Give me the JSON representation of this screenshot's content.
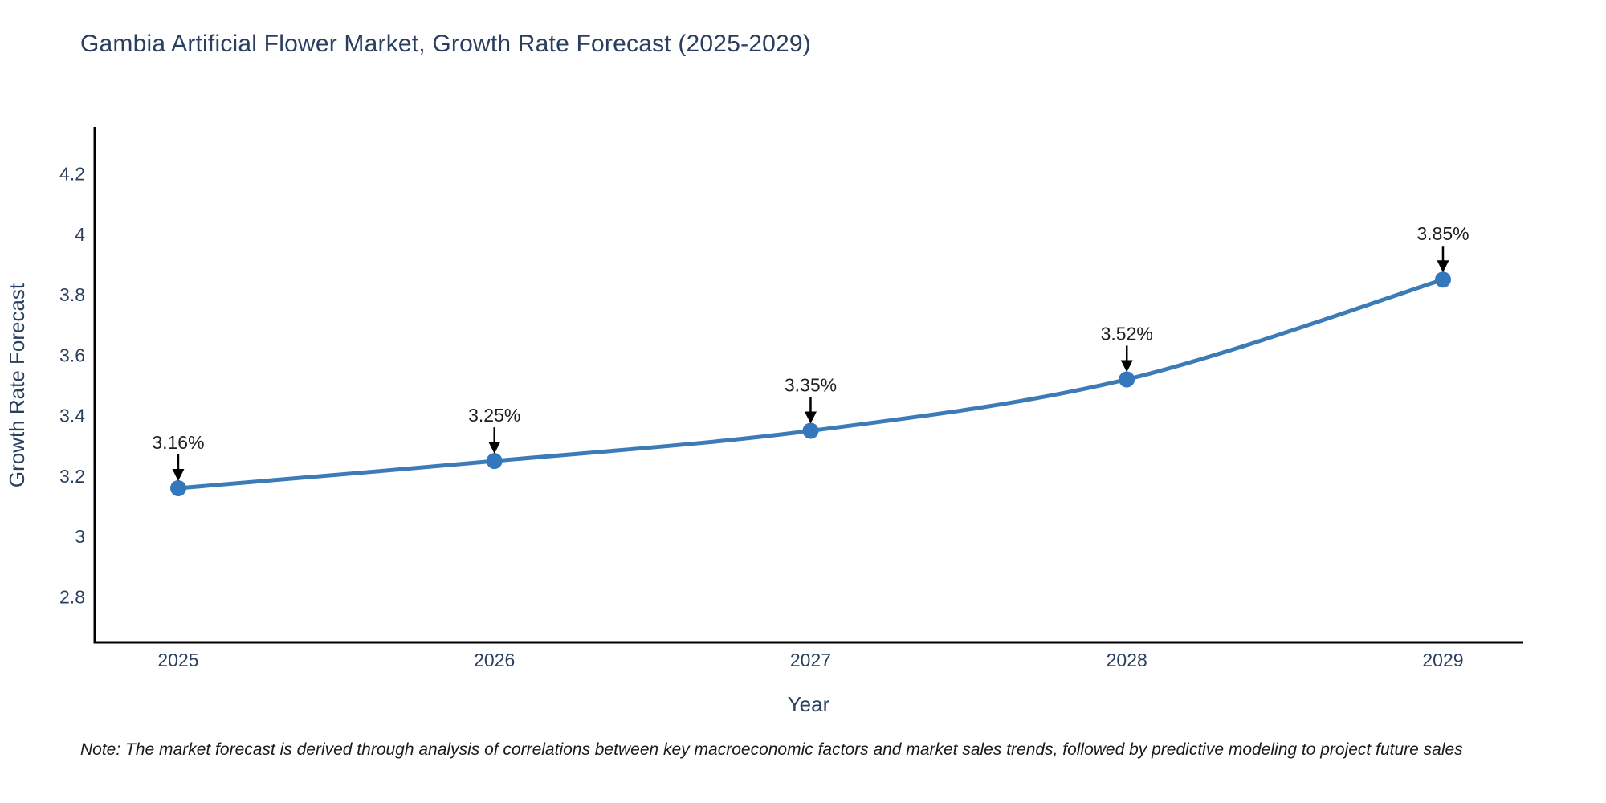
{
  "title": "Gambia Artificial Flower Market, Growth Rate Forecast (2025-2029)",
  "note": "Note: The market forecast is derived through analysis of correlations between key macroeconomic factors and market sales trends, followed by predictive modeling to project future sales",
  "colors": {
    "title": "#2a3f5f",
    "tick_labels": "#2a3f5f",
    "axis_line": "#000000",
    "line": "#3b7bb8",
    "marker": "#3577bd",
    "annotation_text": "#1f1f1f",
    "annotation_arrow": "#000000",
    "note_text": "#1a1a1a",
    "background": "#ffffff"
  },
  "chart_data": {
    "type": "line",
    "title": "Gambia Artificial Flower Market, Growth Rate Forecast (2025-2029)",
    "x": [
      2025,
      2026,
      2027,
      2028,
      2029
    ],
    "y": [
      3.16,
      3.25,
      3.35,
      3.52,
      3.85
    ],
    "point_labels": [
      "3.16%",
      "3.25%",
      "3.35%",
      "3.52%",
      "3.85%"
    ],
    "xlabel": "Year",
    "ylabel": "Growth Rate Forecast",
    "yticks": [
      2.8,
      3,
      3.2,
      3.4,
      3.6,
      3.8,
      4,
      4.2
    ],
    "xticks": [
      "2025",
      "2026",
      "2027",
      "2028",
      "2029"
    ],
    "ylim": [
      2.65,
      4.35
    ],
    "xlim": [
      2024.736,
      2029.254
    ],
    "line_shape": "spline",
    "grid": false,
    "legend": "none",
    "annotations": "arrow-down-to-point"
  }
}
